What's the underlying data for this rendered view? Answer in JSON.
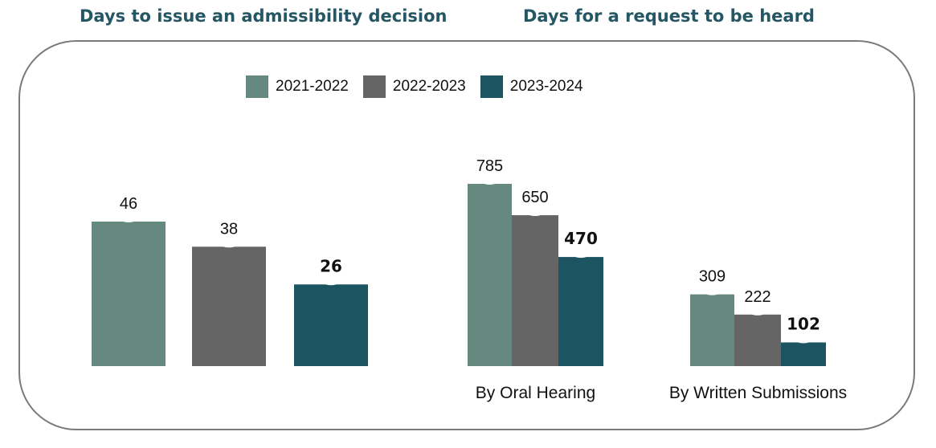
{
  "colors": {
    "title": "#245663",
    "series": [
      "#66897f",
      "#656565",
      "#1d5461"
    ],
    "frame": "#7a7a7a"
  },
  "titles": {
    "left": "Days to issue an admissibility decision",
    "right": "Days for a request to be heard"
  },
  "legend": [
    "2021-2022",
    "2022-2023",
    "2023-2024"
  ],
  "chart_data": [
    {
      "type": "bar",
      "title": "Days to issue an admissibility decision",
      "categories": [
        ""
      ],
      "series": [
        {
          "name": "2021-2022",
          "values": [
            46
          ]
        },
        {
          "name": "2022-2023",
          "values": [
            38
          ]
        },
        {
          "name": "2023-2024",
          "values": [
            26
          ]
        }
      ],
      "bold_series": "2023-2024",
      "grid": false,
      "legend_position": "top"
    },
    {
      "type": "bar",
      "title": "Days for a request to be heard",
      "categories": [
        "By Oral Hearing",
        "By Written Submissions"
      ],
      "series": [
        {
          "name": "2021-2022",
          "values": [
            785,
            309
          ]
        },
        {
          "name": "2022-2023",
          "values": [
            650,
            222
          ]
        },
        {
          "name": "2023-2024",
          "values": [
            470,
            102
          ]
        }
      ],
      "bold_series": "2023-2024",
      "grid": false,
      "legend_position": "top"
    }
  ]
}
